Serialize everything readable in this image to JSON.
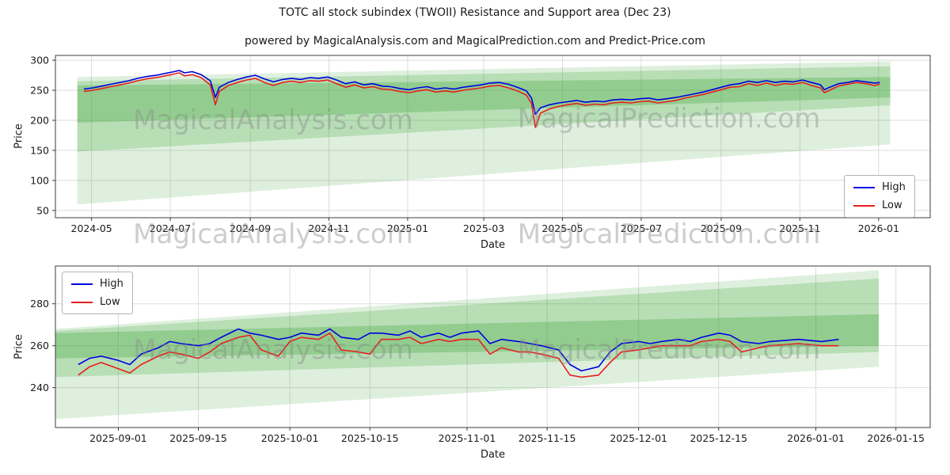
{
  "figure": {
    "title": "TOTC all stock subindex (TWOII) Resistance and Support area (Dec 23)",
    "subtitle": "powered by MagicalAnalysis.com and MagicalPrediction.com and Predict-Price.com",
    "watermarks": {
      "left": "MagicalAnalysis.com",
      "right": "MagicalPrediction.com"
    }
  },
  "chart_data": [
    {
      "type": "line",
      "title": "",
      "xlabel": "Date",
      "ylabel": "Price",
      "grid": true,
      "legend_position": "right",
      "x_range": [
        "2024-04-03",
        "2026-02-10"
      ],
      "y_range": [
        38,
        308
      ],
      "y_ticks": [
        50,
        100,
        150,
        200,
        250,
        300
      ],
      "x_ticks": [
        {
          "value": "2024-05-01",
          "label": "2024-05"
        },
        {
          "value": "2024-07-01",
          "label": "2024-07"
        },
        {
          "value": "2024-09-01",
          "label": "2024-09"
        },
        {
          "value": "2024-11-01",
          "label": "2024-11"
        },
        {
          "value": "2025-01-01",
          "label": "2025-01"
        },
        {
          "value": "2025-03-01",
          "label": "2025-03"
        },
        {
          "value": "2025-05-01",
          "label": "2025-05"
        },
        {
          "value": "2025-07-01",
          "label": "2025-07"
        },
        {
          "value": "2025-09-01",
          "label": "2025-09"
        },
        {
          "value": "2025-11-01",
          "label": "2025-11"
        },
        {
          "value": "2026-01-01",
          "label": "2026-01"
        }
      ],
      "x": [
        "2024-04-25",
        "2024-05-02",
        "2024-05-09",
        "2024-05-16",
        "2024-05-23",
        "2024-05-30",
        "2024-06-06",
        "2024-06-13",
        "2024-06-20",
        "2024-06-27",
        "2024-07-04",
        "2024-07-08",
        "2024-07-12",
        "2024-07-18",
        "2024-07-25",
        "2024-08-01",
        "2024-08-05",
        "2024-08-08",
        "2024-08-15",
        "2024-08-22",
        "2024-08-29",
        "2024-09-05",
        "2024-09-12",
        "2024-09-19",
        "2024-09-26",
        "2024-10-03",
        "2024-10-10",
        "2024-10-17",
        "2024-10-24",
        "2024-10-31",
        "2024-11-07",
        "2024-11-14",
        "2024-11-21",
        "2024-11-28",
        "2024-12-05",
        "2024-12-12",
        "2024-12-19",
        "2024-12-26",
        "2025-01-02",
        "2025-01-09",
        "2025-01-16",
        "2025-01-23",
        "2025-01-30",
        "2025-02-06",
        "2025-02-13",
        "2025-02-20",
        "2025-02-27",
        "2025-03-06",
        "2025-03-13",
        "2025-03-20",
        "2025-03-27",
        "2025-04-03",
        "2025-04-07",
        "2025-04-10",
        "2025-04-14",
        "2025-04-21",
        "2025-04-28",
        "2025-05-05",
        "2025-05-12",
        "2025-05-19",
        "2025-05-26",
        "2025-06-02",
        "2025-06-09",
        "2025-06-16",
        "2025-06-23",
        "2025-06-30",
        "2025-07-07",
        "2025-07-14",
        "2025-07-21",
        "2025-07-28",
        "2025-08-04",
        "2025-08-11",
        "2025-08-18",
        "2025-08-25",
        "2025-09-01",
        "2025-09-08",
        "2025-09-15",
        "2025-09-22",
        "2025-09-29",
        "2025-10-06",
        "2025-10-13",
        "2025-10-20",
        "2025-10-27",
        "2025-11-03",
        "2025-11-10",
        "2025-11-17",
        "2025-11-20",
        "2025-11-24",
        "2025-12-01",
        "2025-12-08",
        "2025-12-15",
        "2025-12-22",
        "2025-12-29",
        "2026-01-02"
      ],
      "series": [
        {
          "name": "High",
          "color": "#0000e0",
          "values": [
            252,
            254,
            257,
            260,
            263,
            266,
            270,
            273,
            275,
            278,
            281,
            283,
            279,
            281,
            276,
            266,
            238,
            255,
            263,
            268,
            272,
            275,
            269,
            264,
            268,
            270,
            268,
            271,
            270,
            272,
            267,
            261,
            264,
            259,
            261,
            257,
            256,
            253,
            251,
            254,
            256,
            252,
            254,
            252,
            255,
            257,
            259,
            262,
            263,
            260,
            255,
            249,
            237,
            210,
            221,
            226,
            229,
            231,
            233,
            230,
            232,
            231,
            234,
            235,
            234,
            236,
            237,
            234,
            236,
            238,
            241,
            244,
            247,
            251,
            255,
            259,
            261,
            265,
            263,
            266,
            263,
            265,
            264,
            267,
            263,
            259,
            251,
            255,
            261,
            263,
            266,
            264,
            262,
            263
          ]
        },
        {
          "name": "Low",
          "color": "#e81e1e",
          "values": [
            248,
            250,
            253,
            256,
            259,
            262,
            266,
            269,
            271,
            274,
            277,
            279,
            274,
            276,
            271,
            259,
            226,
            248,
            258,
            263,
            267,
            270,
            263,
            258,
            263,
            265,
            263,
            266,
            265,
            267,
            261,
            255,
            259,
            254,
            256,
            252,
            251,
            248,
            246,
            249,
            251,
            247,
            249,
            247,
            250,
            252,
            254,
            257,
            258,
            254,
            249,
            242,
            228,
            188,
            212,
            219,
            223,
            226,
            228,
            225,
            227,
            226,
            229,
            230,
            229,
            231,
            232,
            229,
            231,
            233,
            237,
            240,
            243,
            247,
            251,
            255,
            256,
            261,
            258,
            262,
            258,
            261,
            260,
            263,
            258,
            254,
            246,
            250,
            257,
            260,
            263,
            261,
            258,
            260
          ]
        }
      ],
      "bands": [
        {
          "name": "support-resistance-band-light",
          "color": "#33a02c",
          "opacity": 0.16,
          "points": [
            [
              "2024-04-20",
              272
            ],
            [
              "2026-01-10",
              298
            ],
            [
              "2026-01-10",
              160
            ],
            [
              "2024-04-20",
              60
            ]
          ]
        },
        {
          "name": "support-resistance-band-mid",
          "color": "#33a02c",
          "opacity": 0.22,
          "points": [
            [
              "2024-04-20",
              265
            ],
            [
              "2026-01-10",
              290
            ],
            [
              "2026-01-10",
              225
            ],
            [
              "2024-04-20",
              148
            ]
          ]
        },
        {
          "name": "support-resistance-band-dark",
          "color": "#33a02c",
          "opacity": 0.28,
          "points": [
            [
              "2024-04-20",
              258
            ],
            [
              "2026-01-10",
              272
            ],
            [
              "2026-01-10",
              238
            ],
            [
              "2024-04-20",
              196
            ]
          ]
        }
      ]
    },
    {
      "type": "line",
      "title": "",
      "xlabel": "Date",
      "ylabel": "Price",
      "grid": true,
      "legend_position": "upper-left",
      "x_range": [
        "2025-08-21",
        "2026-01-21"
      ],
      "y_range": [
        221,
        298
      ],
      "y_ticks": [
        240,
        260,
        280
      ],
      "x_ticks": [
        {
          "value": "2025-09-01",
          "label": "2025-09-01"
        },
        {
          "value": "2025-09-15",
          "label": "2025-09-15"
        },
        {
          "value": "2025-10-01",
          "label": "2025-10-01"
        },
        {
          "value": "2025-10-15",
          "label": "2025-10-15"
        },
        {
          "value": "2025-11-01",
          "label": "2025-11-01"
        },
        {
          "value": "2025-11-15",
          "label": "2025-11-15"
        },
        {
          "value": "2025-12-01",
          "label": "2025-12-01"
        },
        {
          "value": "2025-12-15",
          "label": "2025-12-15"
        },
        {
          "value": "2026-01-01",
          "label": "2026-01-01"
        },
        {
          "value": "2026-01-15",
          "label": "2026-01-15"
        }
      ],
      "x": [
        "2025-08-25",
        "2025-08-27",
        "2025-08-29",
        "2025-09-01",
        "2025-09-03",
        "2025-09-05",
        "2025-09-08",
        "2025-09-10",
        "2025-09-12",
        "2025-09-15",
        "2025-09-17",
        "2025-09-19",
        "2025-09-22",
        "2025-09-24",
        "2025-09-26",
        "2025-09-29",
        "2025-10-01",
        "2025-10-03",
        "2025-10-06",
        "2025-10-08",
        "2025-10-10",
        "2025-10-13",
        "2025-10-15",
        "2025-10-17",
        "2025-10-20",
        "2025-10-22",
        "2025-10-24",
        "2025-10-27",
        "2025-10-29",
        "2025-10-31",
        "2025-11-03",
        "2025-11-05",
        "2025-11-07",
        "2025-11-10",
        "2025-11-12",
        "2025-11-14",
        "2025-11-17",
        "2025-11-19",
        "2025-11-21",
        "2025-11-24",
        "2025-11-26",
        "2025-11-28",
        "2025-12-01",
        "2025-12-03",
        "2025-12-05",
        "2025-12-08",
        "2025-12-10",
        "2025-12-12",
        "2025-12-15",
        "2025-12-17",
        "2025-12-19",
        "2025-12-22",
        "2025-12-24",
        "2025-12-29",
        "2026-01-02",
        "2026-01-05"
      ],
      "series": [
        {
          "name": "High",
          "color": "#0000e0",
          "values": [
            251,
            254,
            255,
            253,
            251,
            256,
            259,
            262,
            261,
            260,
            261,
            264,
            268,
            266,
            265,
            263,
            264,
            266,
            265,
            268,
            264,
            263,
            266,
            266,
            265,
            267,
            264,
            266,
            264,
            266,
            267,
            261,
            263,
            262,
            261,
            260,
            258,
            251,
            248,
            250,
            257,
            261,
            262,
            261,
            262,
            263,
            262,
            264,
            266,
            265,
            262,
            261,
            262,
            263,
            262,
            263
          ]
        },
        {
          "name": "Low",
          "color": "#e81e1e",
          "values": [
            246,
            250,
            252,
            249,
            247,
            251,
            255,
            257,
            256,
            254,
            257,
            261,
            264,
            265,
            258,
            255,
            262,
            264,
            263,
            266,
            258,
            257,
            256,
            263,
            263,
            264,
            261,
            263,
            262,
            263,
            263,
            256,
            259,
            257,
            257,
            256,
            254,
            246,
            245,
            246,
            252,
            257,
            258,
            259,
            260,
            260,
            260,
            262,
            263,
            262,
            257,
            259,
            260,
            261,
            260,
            260
          ]
        }
      ],
      "bands": [
        {
          "name": "support-resistance-band-light",
          "color": "#33a02c",
          "opacity": 0.16,
          "points": [
            [
              "2025-08-21",
              268
            ],
            [
              "2026-01-12",
              296
            ],
            [
              "2026-01-12",
              250
            ],
            [
              "2025-08-21",
              225
            ]
          ]
        },
        {
          "name": "support-resistance-band-mid",
          "color": "#33a02c",
          "opacity": 0.22,
          "points": [
            [
              "2025-08-21",
              267
            ],
            [
              "2026-01-12",
              292
            ],
            [
              "2026-01-12",
              257
            ],
            [
              "2025-08-21",
              245
            ]
          ]
        },
        {
          "name": "support-resistance-band-dark",
          "color": "#33a02c",
          "opacity": 0.28,
          "points": [
            [
              "2025-08-21",
              266
            ],
            [
              "2026-01-12",
              275
            ],
            [
              "2026-01-12",
              260
            ],
            [
              "2025-08-21",
              254
            ]
          ]
        }
      ]
    }
  ]
}
